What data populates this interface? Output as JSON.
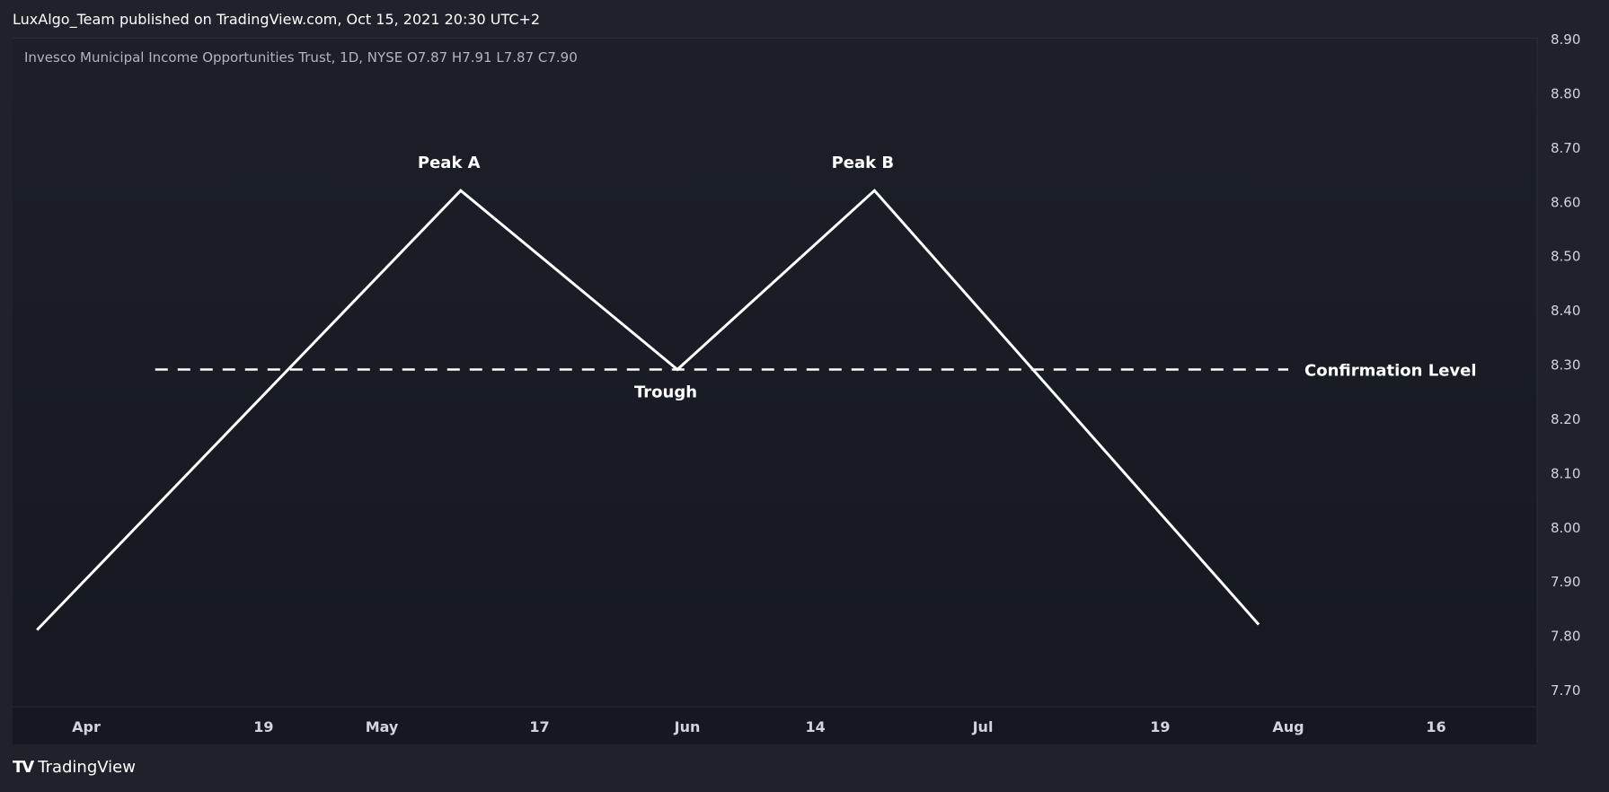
{
  "header": {
    "published": "LuxAlgo_Team published on TradingView.com, Oct 15, 2021 20:30 UTC+2"
  },
  "symbol_line": "Invesco Municipal Income Opportunities Trust, 1D, NYSE  O7.87  H7.91  L7.87  C7.90",
  "footer": {
    "brand": "TradingView",
    "logo": "TV"
  },
  "colors": {
    "background": "#1f222b",
    "line": "#ffffff",
    "text": "#d1d4dc"
  },
  "chart_data": {
    "type": "line",
    "title": "",
    "xlabel": "",
    "ylabel": "",
    "ylim": [
      7.675,
      8.915
    ],
    "y_ticks": [
      "8.90",
      "8.80",
      "8.70",
      "8.60",
      "8.50",
      "8.40",
      "8.30",
      "8.20",
      "8.10",
      "8.00",
      "7.90",
      "7.80",
      "7.70"
    ],
    "x_ticks": [
      "Apr",
      "19",
      "May",
      "17",
      "Jun",
      "14",
      "Jul",
      "19",
      "Aug",
      "16"
    ],
    "x_tick_dates": [
      "2021-04-01",
      "2021-04-19",
      "2021-05-01",
      "2021-05-17",
      "2021-06-01",
      "2021-06-14",
      "2021-07-01",
      "2021-07-19",
      "2021-08-01",
      "2021-08-16"
    ],
    "series": [
      {
        "x": [
          "2021-03-27",
          "2021-05-09",
          "2021-05-31",
          "2021-06-20",
          "2021-07-29"
        ],
        "y": [
          7.81,
          8.62,
          8.29,
          8.62,
          7.82
        ]
      }
    ],
    "confirmation_level": {
      "y": 8.29,
      "x_start": "2021-04-08",
      "x_end": "2021-08-01",
      "label": "Confirmation Level"
    },
    "annotations": [
      {
        "text": "Peak A",
        "x": "2021-05-09",
        "y": 8.62
      },
      {
        "text": "Trough",
        "x": "2021-05-31",
        "y": 8.29
      },
      {
        "text": "Peak B",
        "x": "2021-06-20",
        "y": 8.62
      }
    ],
    "grid": false,
    "legend": "none"
  }
}
